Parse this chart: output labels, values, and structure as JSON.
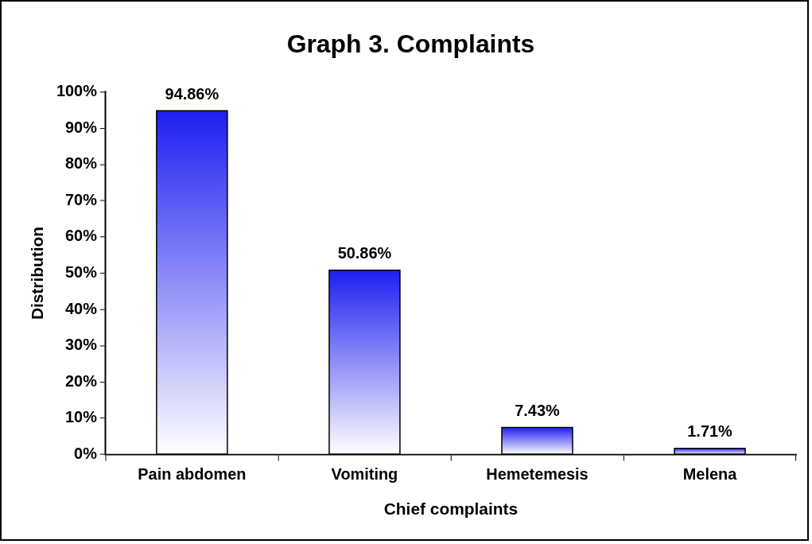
{
  "chart_data": {
    "type": "bar",
    "title": "Graph 3. Complaints",
    "xlabel": "Chief complaints",
    "ylabel": "Distribution",
    "categories": [
      "Pain abdomen",
      "Vomiting",
      "Hemetemesis",
      "Melena"
    ],
    "values": [
      94.86,
      50.86,
      7.43,
      1.71
    ],
    "value_labels": [
      "94.86%",
      "50.86%",
      "7.43%",
      "1.71%"
    ],
    "color": "#1e1ef0",
    "ylim": [
      0,
      100
    ],
    "yticks": [
      {
        "value": 0,
        "label": "0%"
      },
      {
        "value": 10,
        "label": "10%"
      },
      {
        "value": 20,
        "label": "20%"
      },
      {
        "value": 30,
        "label": "30%"
      },
      {
        "value": 40,
        "label": "40%"
      },
      {
        "value": 50,
        "label": "50%"
      },
      {
        "value": 60,
        "label": "60%"
      },
      {
        "value": 70,
        "label": "70%"
      },
      {
        "value": 80,
        "label": "80%"
      },
      {
        "value": 90,
        "label": "90%"
      },
      {
        "value": 100,
        "label": "100%"
      }
    ],
    "grid": false,
    "legend": false
  }
}
